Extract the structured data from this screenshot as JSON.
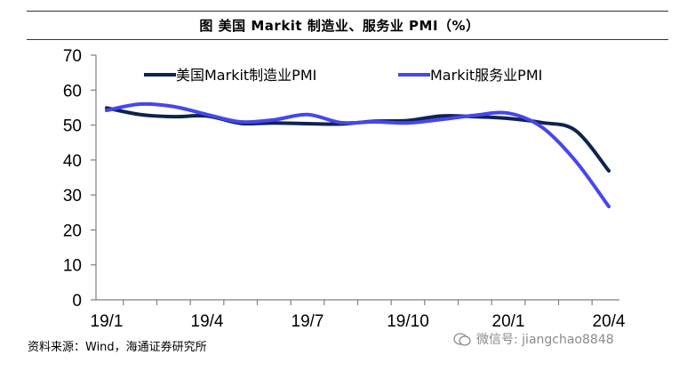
{
  "header": {
    "title": "图 美国 Markit 制造业、服务业 PMI（%）"
  },
  "footer": {
    "source": "资料来源：Wind，海通证券研究所",
    "watermark": "微信号: jiangchao8848"
  },
  "colors": {
    "manufacturing": "#0f2350",
    "services": "#4646f0"
  },
  "chart_data": {
    "type": "line",
    "title": "",
    "xlabel": "",
    "ylabel": "",
    "ylim": [
      0,
      70
    ],
    "yticks": [
      0,
      10,
      20,
      30,
      40,
      50,
      60,
      70
    ],
    "x": [
      "2019-01",
      "2019-02",
      "2019-03",
      "2019-04",
      "2019-05",
      "2019-06",
      "2019-07",
      "2019-08",
      "2019-09",
      "2019-10",
      "2019-11",
      "2019-12",
      "2020-01",
      "2020-02",
      "2020-03",
      "2020-04"
    ],
    "xticklabels": [
      "19/1",
      "19/4",
      "19/7",
      "19/10",
      "20/1",
      "20/4"
    ],
    "xtick_positions": [
      "2019-01",
      "2019-04",
      "2019-07",
      "2019-10",
      "2020-01",
      "2020-04"
    ],
    "legend_position": "top",
    "grid": false,
    "series": [
      {
        "name": "美国Markit制造业PMI",
        "values": [
          54.9,
          53.0,
          52.4,
          52.6,
          50.5,
          50.6,
          50.4,
          50.3,
          51.1,
          51.3,
          52.6,
          52.4,
          51.9,
          50.7,
          48.5,
          36.9
        ]
      },
      {
        "name": "Markit服务业PMI",
        "values": [
          54.2,
          56.0,
          55.3,
          53.0,
          50.9,
          51.5,
          53.0,
          50.7,
          50.9,
          50.6,
          51.6,
          52.8,
          53.4,
          49.4,
          39.8,
          26.7
        ]
      }
    ]
  }
}
